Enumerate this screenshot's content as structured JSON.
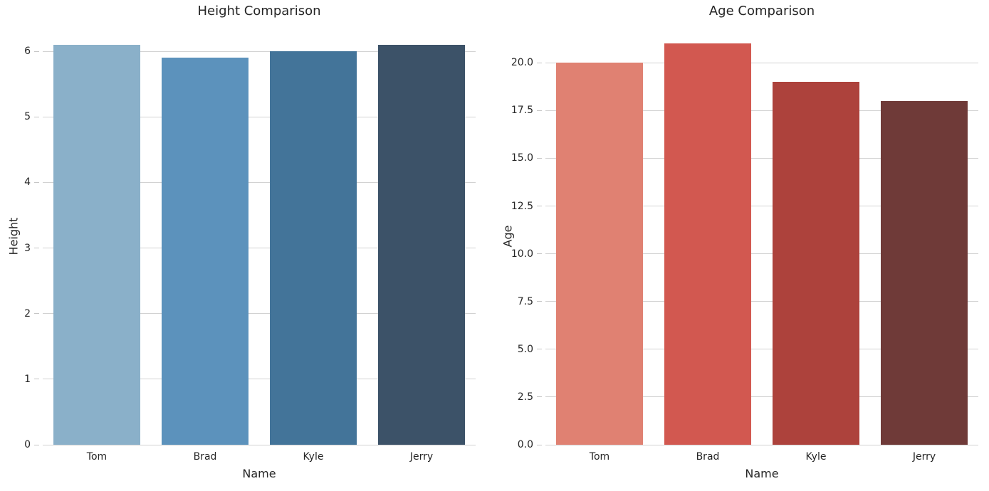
{
  "figure": {
    "background": "#ffffff",
    "text_color": "#262626",
    "grid_color": "#d2d2d2",
    "tick_mark_color": "#c6c6c6"
  },
  "chart_data": [
    {
      "type": "bar",
      "title": "Height Comparison",
      "xlabel": "Name",
      "ylabel": "Height",
      "categories": [
        "Tom",
        "Brad",
        "Kyle",
        "Jerry"
      ],
      "values": [
        6.1,
        5.9,
        6.0,
        6.1
      ],
      "bar_colors": [
        "#8ab0c9",
        "#5c92bc",
        "#437499",
        "#3c5268"
      ],
      "ylim": [
        0,
        6.35
      ],
      "yticks": [
        {
          "value": 0,
          "label": "0"
        },
        {
          "value": 1,
          "label": "1"
        },
        {
          "value": 2,
          "label": "2"
        },
        {
          "value": 3,
          "label": "3"
        },
        {
          "value": 4,
          "label": "4"
        },
        {
          "value": 5,
          "label": "5"
        },
        {
          "value": 6,
          "label": "6"
        }
      ],
      "grid": true,
      "legend": "none"
    },
    {
      "type": "bar",
      "title": "Age Comparison",
      "xlabel": "Name",
      "ylabel": "Age",
      "categories": [
        "Tom",
        "Brad",
        "Kyle",
        "Jerry"
      ],
      "values": [
        20,
        21,
        19,
        18
      ],
      "bar_colors": [
        "#e08172",
        "#d25850",
        "#ad423c",
        "#6f3a38"
      ],
      "ylim": [
        0,
        21.8
      ],
      "yticks": [
        {
          "value": 0,
          "label": "0.0"
        },
        {
          "value": 2.5,
          "label": "2.5"
        },
        {
          "value": 5,
          "label": "5.0"
        },
        {
          "value": 7.5,
          "label": "7.5"
        },
        {
          "value": 10,
          "label": "10.0"
        },
        {
          "value": 12.5,
          "label": "12.5"
        },
        {
          "value": 15,
          "label": "15.0"
        },
        {
          "value": 17.5,
          "label": "17.5"
        },
        {
          "value": 20,
          "label": "20.0"
        }
      ],
      "grid": true,
      "legend": "none"
    }
  ]
}
